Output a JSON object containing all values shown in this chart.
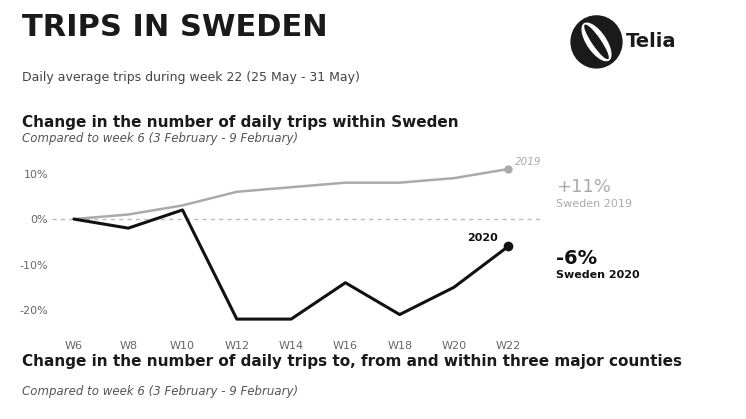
{
  "title": "TRIPS IN SWEDEN",
  "subtitle": "Daily average trips during week 22 (25 May - 31 May)",
  "chart_title": "Change in the number of daily trips within Sweden",
  "chart_subtitle": "Compared to week 6 (3 February - 9 February)",
  "bottom_title": "Change in the number of daily trips to, from and within three major counties",
  "bottom_subtitle": "Compared to week 6 (3 February - 9 February)",
  "x_labels": [
    "W6",
    "W8",
    "W10",
    "W12",
    "W14",
    "W16",
    "W18",
    "W20",
    "W22"
  ],
  "x_values": [
    6,
    8,
    10,
    12,
    14,
    16,
    18,
    20,
    22
  ],
  "y2019": [
    0,
    1,
    3,
    6,
    7,
    8,
    8,
    9,
    11
  ],
  "y2020": [
    0,
    -2,
    2,
    -22,
    -22,
    -14,
    -21,
    -15,
    -6
  ],
  "y2019_color": "#aaaaaa",
  "y2020_color": "#111111",
  "label_2019": "+11%",
  "label_2019_sub": "Sweden 2019",
  "label_2020": "-6%",
  "label_2020_sub": "Sweden 2020",
  "yticks": [
    -20,
    -10,
    0,
    10
  ],
  "ytick_labels": [
    "-20%",
    "-10%",
    "0%",
    "10%"
  ],
  "ylim_min": -26,
  "ylim_max": 15,
  "background_color": "#ffffff",
  "separator_color": "#bbbbbb",
  "grid_color": "#bbbbbb",
  "title_fontsize": 22,
  "subtitle_fontsize": 9,
  "chart_title_fontsize": 11,
  "tick_fontsize": 8
}
